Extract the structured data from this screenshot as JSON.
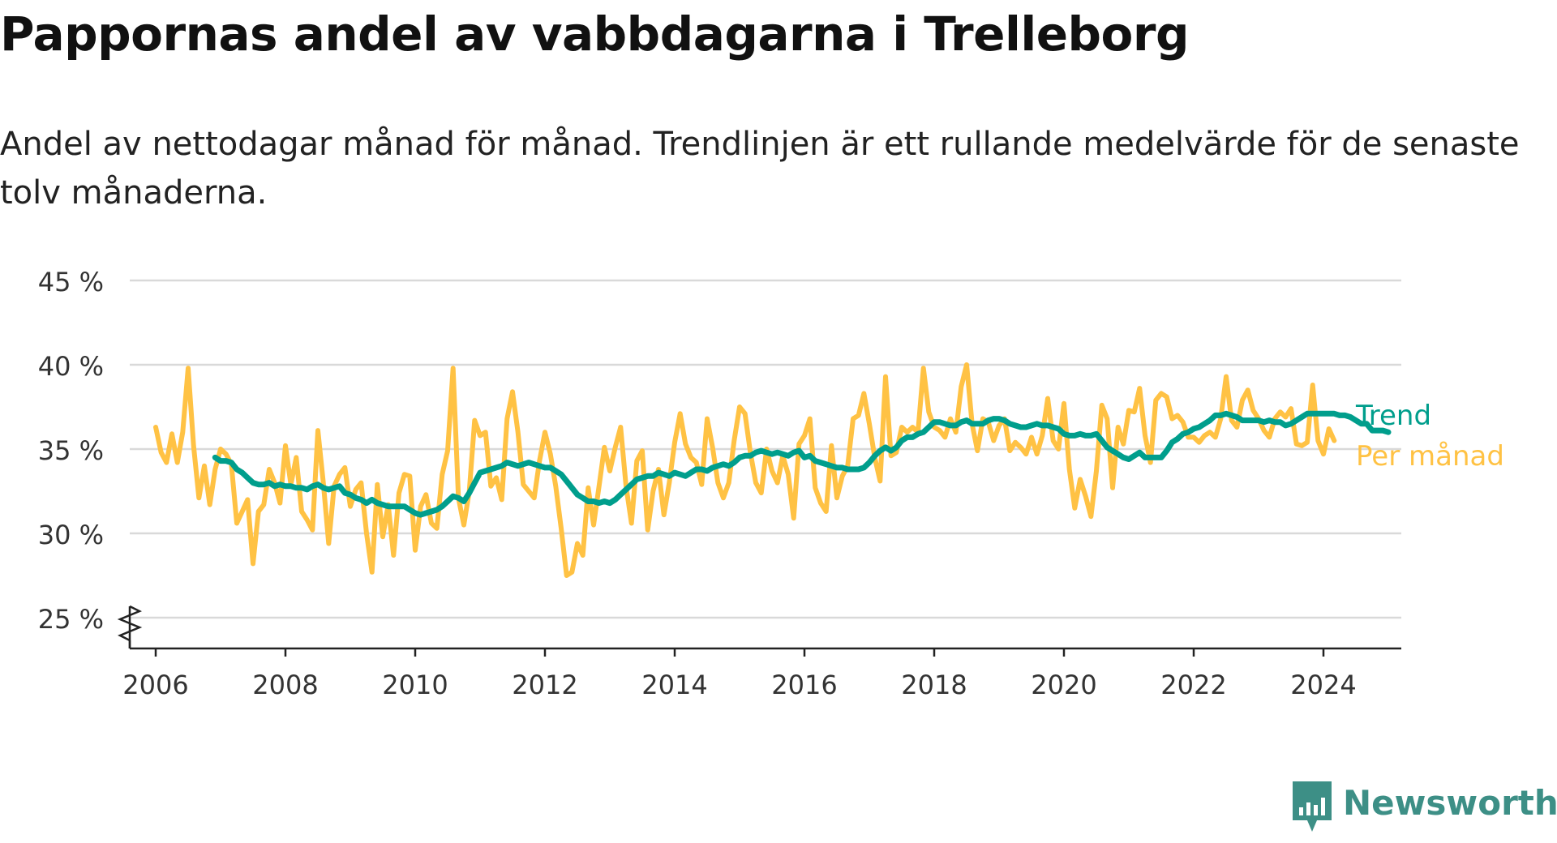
{
  "title": "Pappornas andel av vabbdagarna i Trelleborg",
  "subtitle": "Andel av nettodagar månad för månad. Trendlinjen är ett rullande medelvärde för de senaste tolv månaderna.",
  "brand": "Newsworthy",
  "colors": {
    "monthly": "#ffc244",
    "trend": "#009e8c",
    "grid": "#d9d9d9",
    "axis": "#222222",
    "brand": "#3d8f86"
  },
  "chart_data": {
    "type": "line",
    "xlim": [
      2005.6,
      2025.2
    ],
    "ylim": [
      25,
      45
    ],
    "y_ticks": [
      25,
      30,
      35,
      40,
      45
    ],
    "y_tick_labels": [
      "25 %",
      "30 %",
      "35 %",
      "40 %",
      "45 %"
    ],
    "x_ticks": [
      2006,
      2008,
      2010,
      2012,
      2014,
      2016,
      2018,
      2020,
      2022,
      2024
    ],
    "x_tick_labels": [
      "2006",
      "2008",
      "2010",
      "2012",
      "2014",
      "2016",
      "2018",
      "2020",
      "2022",
      "2024"
    ],
    "y_axis_break": true,
    "grid": true,
    "legend": "right",
    "series": [
      {
        "name": "Per månad",
        "x_start": 2006.0,
        "step": 0.0833333,
        "values": [
          36.3,
          34.8,
          34.2,
          35.9,
          34.2,
          36.0,
          39.8,
          35.2,
          32.1,
          34.0,
          31.7,
          33.8,
          35.0,
          34.7,
          34.1,
          30.6,
          31.3,
          32.0,
          28.2,
          31.3,
          31.7,
          33.8,
          33.0,
          31.8,
          35.2,
          32.9,
          34.5,
          31.3,
          30.8,
          30.2,
          36.1,
          33.0,
          29.4,
          32.8,
          33.5,
          33.9,
          31.6,
          32.6,
          33.0,
          30.0,
          27.7,
          32.9,
          29.8,
          31.7,
          28.7,
          32.4,
          33.5,
          33.4,
          29.0,
          31.6,
          32.3,
          30.6,
          30.3,
          33.5,
          34.9,
          39.8,
          32.1,
          30.5,
          32.5,
          36.7,
          35.8,
          36.0,
          32.8,
          33.3,
          32.0,
          36.8,
          38.4,
          36.0,
          32.9,
          32.5,
          32.1,
          34.3,
          36.0,
          34.7,
          32.8,
          30.3,
          27.5,
          27.7,
          29.4,
          28.7,
          32.7,
          30.5,
          32.8,
          35.1,
          33.7,
          35.1,
          36.3,
          32.8,
          30.6,
          34.3,
          34.9,
          30.2,
          32.5,
          33.8,
          31.1,
          33.0,
          35.4,
          37.1,
          35.3,
          34.5,
          34.2,
          32.9,
          36.8,
          35.1,
          33.0,
          32.1,
          33.0,
          35.5,
          37.5,
          37.1,
          34.8,
          33.0,
          32.4,
          35.0,
          33.7,
          33.0,
          34.6,
          33.5,
          30.9,
          35.3,
          35.8,
          36.8,
          32.7,
          31.8,
          31.3,
          35.2,
          32.1,
          33.4,
          34.0,
          36.8,
          37.0,
          38.3,
          36.5,
          34.5,
          33.1,
          39.3,
          34.6,
          34.8,
          36.3,
          36.0,
          36.3,
          36.0,
          39.8,
          37.2,
          36.3,
          36.1,
          35.7,
          36.8,
          36.0,
          38.7,
          40.0,
          36.5,
          34.9,
          36.8,
          36.6,
          35.5,
          36.4,
          36.8,
          34.9,
          35.4,
          35.1,
          34.7,
          35.7,
          34.7,
          35.8,
          38.0,
          35.5,
          35.0,
          37.7,
          33.8,
          31.5,
          33.2,
          32.2,
          31.0,
          33.7,
          37.6,
          36.8,
          32.7,
          36.3,
          35.3,
          37.3,
          37.2,
          38.6,
          35.8,
          34.2,
          37.9,
          38.3,
          38.1,
          36.8,
          37.0,
          36.6,
          35.7,
          35.7,
          35.4,
          35.8,
          36.0,
          35.7,
          36.8,
          39.3,
          36.7,
          36.3,
          37.9,
          38.5,
          37.3,
          36.8,
          36.1,
          35.7,
          36.8,
          37.2,
          36.9,
          37.4,
          35.3,
          35.2,
          35.4,
          38.8,
          35.5,
          34.7,
          36.2,
          35.5
        ]
      },
      {
        "name": "Trend",
        "x_start": 2006.9167,
        "step": 0.0833333,
        "values": [
          34.5,
          34.3,
          34.3,
          34.2,
          33.8,
          33.6,
          33.3,
          33.0,
          32.9,
          32.9,
          33.0,
          32.8,
          32.9,
          32.8,
          32.8,
          32.7,
          32.7,
          32.6,
          32.8,
          32.9,
          32.7,
          32.6,
          32.7,
          32.8,
          32.4,
          32.3,
          32.1,
          32.0,
          31.8,
          32.0,
          31.8,
          31.7,
          31.6,
          31.6,
          31.6,
          31.6,
          31.4,
          31.2,
          31.1,
          31.2,
          31.3,
          31.4,
          31.6,
          31.9,
          32.2,
          32.1,
          31.9,
          32.4,
          33.0,
          33.6,
          33.7,
          33.8,
          33.9,
          34.0,
          34.2,
          34.1,
          34.0,
          34.1,
          34.2,
          34.1,
          34.0,
          33.9,
          33.9,
          33.7,
          33.5,
          33.1,
          32.7,
          32.3,
          32.1,
          31.9,
          31.9,
          31.8,
          31.9,
          31.8,
          32.0,
          32.3,
          32.6,
          32.9,
          33.2,
          33.3,
          33.4,
          33.4,
          33.6,
          33.5,
          33.4,
          33.6,
          33.5,
          33.4,
          33.6,
          33.8,
          33.8,
          33.7,
          33.9,
          34.0,
          34.1,
          34.0,
          34.2,
          34.5,
          34.6,
          34.6,
          34.8,
          34.9,
          34.8,
          34.7,
          34.8,
          34.7,
          34.6,
          34.8,
          34.9,
          34.5,
          34.6,
          34.3,
          34.2,
          34.1,
          34.0,
          33.9,
          33.9,
          33.8,
          33.8,
          33.8,
          33.9,
          34.2,
          34.6,
          34.9,
          35.1,
          34.9,
          35.1,
          35.5,
          35.7,
          35.7,
          35.9,
          36.0,
          36.3,
          36.6,
          36.6,
          36.5,
          36.4,
          36.4,
          36.6,
          36.7,
          36.5,
          36.5,
          36.5,
          36.7,
          36.8,
          36.8,
          36.7,
          36.5,
          36.4,
          36.3,
          36.3,
          36.4,
          36.5,
          36.4,
          36.4,
          36.3,
          36.2,
          35.9,
          35.8,
          35.8,
          35.9,
          35.8,
          35.8,
          35.9,
          35.5,
          35.1,
          34.9,
          34.7,
          34.5,
          34.4,
          34.6,
          34.8,
          34.5,
          34.5,
          34.5,
          34.5,
          34.9,
          35.4,
          35.6,
          35.9,
          36.0,
          36.2,
          36.3,
          36.5,
          36.7,
          37.0,
          37.0,
          37.1,
          37.0,
          36.9,
          36.7,
          36.7,
          36.7,
          36.7,
          36.6,
          36.7,
          36.6,
          36.6,
          36.4,
          36.5,
          36.7,
          36.9,
          37.1,
          37.1,
          37.1,
          37.1,
          37.1,
          37.1,
          37.0,
          37.0,
          36.9,
          36.7,
          36.5,
          36.5,
          36.1,
          36.1,
          36.1,
          36.0
        ]
      }
    ]
  }
}
